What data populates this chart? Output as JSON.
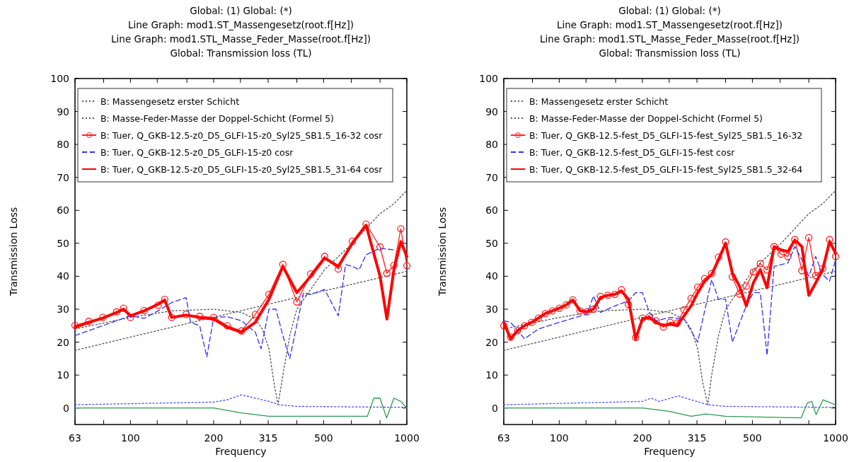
{
  "chart_data": [
    {
      "type": "line",
      "title": "Global:  (1)  Global:  (*)\nLine Graph: mod1.ST_Massengesetz(root.f[Hz])\nLine Graph: mod1.STL_Masse_Feder_Masse(root.f[Hz])\nGlobal: Transmission loss (TL)",
      "xlabel": "Frequency",
      "ylabel": "Transmission Loss",
      "log": "x",
      "legend": "top",
      "xlim": [
        63,
        1000
      ],
      "ylim": [
        -5,
        100
      ],
      "xticks": [
        63,
        {
          "value": 80,
          "label": null
        },
        100,
        {
          "value": 125,
          "label": null
        },
        {
          "value": 160,
          "label": null
        },
        200,
        {
          "value": 250,
          "label": null
        },
        315,
        {
          "value": 400,
          "label": null
        },
        500,
        {
          "value": 630,
          "label": null
        },
        {
          "value": 800,
          "label": null
        },
        1000
      ],
      "yticks": [
        0,
        10,
        20,
        30,
        40,
        50,
        60,
        70,
        80,
        90,
        100
      ],
      "series": [
        {
          "name": "B: Massengesetz erster Schicht",
          "color": "#555555",
          "line_style": "dotted",
          "marker": "none",
          "x": [
            63,
            250,
            1000
          ],
          "values": [
            17.5,
            29.5,
            41.5
          ]
        },
        {
          "name": "B: Masse-Feder-Masse der Doppel-Schicht (Formel 5)",
          "color": "#555555",
          "line_style": "dotted",
          "marker": "none",
          "x": [
            63,
            100,
            141,
            200,
            252,
            283,
            300,
            317,
            330,
            342,
            356,
            377,
            400,
            449,
            504,
            635,
            800,
            898,
            1000
          ],
          "values": [
            24,
            27.5,
            29.5,
            30,
            29,
            27,
            24,
            18,
            8,
            1,
            10,
            22,
            30,
            36,
            42,
            50,
            59,
            62,
            66
          ]
        },
        {
          "name": "B: Tuer, Q_GKB-12.5-z0_D5_GLFI-15-z0_Syl25_SB1.5_16-32 cosr",
          "color": "#ff2020",
          "line_style": "solid",
          "marker": "circle",
          "x": [
            63,
            70.7,
            79.4,
            89.1,
            94.4,
            100,
            112,
            126,
            133,
            141,
            159,
            178,
            200,
            224,
            252,
            283,
            317,
            356,
            400,
            449,
            504,
            565,
            635,
            712,
            800,
            847,
            898,
            951,
            1000
          ],
          "values": [
            25.1,
            26.3,
            27.5,
            29.2,
            30.3,
            27.5,
            29.6,
            31.2,
            33,
            27.5,
            28.4,
            27.8,
            27.5,
            25,
            23.4,
            28.4,
            34.5,
            43.6,
            32.2,
            40.7,
            46,
            42.2,
            50.6,
            55.8,
            48.9,
            40.9,
            43.3,
            54.4,
            43.2
          ]
        },
        {
          "name": "B: Tuer, Q_GKB-12.5-z0_D5_GLFI-15-z0 cosr",
          "color": "#3030ff",
          "line_style": "dashed",
          "marker": "none",
          "x": [
            63,
            70.7,
            79.4,
            89.1,
            100,
            112,
            126,
            141,
            159,
            165,
            178,
            189,
            200,
            224,
            252,
            283,
            297,
            317,
            336,
            356,
            377,
            423,
            449,
            504,
            565,
            600,
            635,
            672,
            712,
            800,
            898
          ],
          "values": [
            22,
            23.5,
            25,
            26.5,
            28,
            27.2,
            29.5,
            32,
            33.5,
            26,
            25,
            15.5,
            27.5,
            27.7,
            26.5,
            23,
            18,
            30,
            30,
            22,
            15,
            35,
            34.5,
            36,
            28,
            43.5,
            43,
            42,
            46.5,
            48.5,
            48
          ]
        },
        {
          "name": "B: Tuer, Q_GKB-12.5-z0_D5_GLFI-15-z0_Syl25_SB1.5_31-64 cosr",
          "color": "#ff0000",
          "line_style": "solid",
          "marker": "none",
          "x": [
            63,
            70.7,
            79.4,
            89.1,
            94.4,
            100,
            112,
            126,
            133,
            141,
            159,
            178,
            200,
            224,
            252,
            283,
            317,
            356,
            400,
            449,
            504,
            565,
            635,
            712,
            800,
            847,
            898,
            951,
            1000
          ],
          "values": [
            24.5,
            26,
            27.3,
            29,
            30,
            28,
            29.5,
            31.5,
            32.8,
            27.5,
            28.2,
            27.5,
            27,
            24.5,
            23,
            26,
            33,
            43,
            35,
            40,
            45.5,
            43,
            50,
            55.5,
            40,
            27,
            42,
            50.5,
            46
          ]
        },
        {
          "color": "#4a4aff",
          "line_style": "dotted",
          "marker": "none",
          "x": [
            63,
            200,
            224,
            252,
            283,
            317,
            345,
            400,
            1000
          ],
          "values": [
            1,
            1.8,
            2.5,
            4,
            3,
            2,
            1,
            0.5,
            0.2
          ]
        },
        {
          "color": "#2e9a50",
          "line_style": "solid",
          "marker": "none",
          "x": [
            63,
            200,
            252,
            317,
            400,
            720,
            760,
            800,
            845,
            898,
            951,
            1000
          ],
          "values": [
            0,
            0,
            -1.5,
            -2.5,
            -2.5,
            -2.5,
            3,
            3,
            -3,
            3,
            2,
            0
          ]
        }
      ]
    },
    {
      "type": "line",
      "title": "Global:  (1)  Global:  (*)\nLine Graph: mod1.ST_Massengesetz(root.f[Hz])\nLine Graph: mod1.STL_Masse_Feder_Masse(root.f[Hz])\nGlobal: Transmission loss (TL)",
      "xlabel": "Frequency",
      "ylabel": "Transmission Loss",
      "log": "x",
      "legend": "top",
      "xlim": [
        63,
        1000
      ],
      "ylim": [
        -5,
        100
      ],
      "xticks": [
        63,
        {
          "value": 80,
          "label": null
        },
        100,
        {
          "value": 125,
          "label": null
        },
        {
          "value": 160,
          "label": null
        },
        200,
        {
          "value": 250,
          "label": null
        },
        315,
        {
          "value": 400,
          "label": null
        },
        500,
        {
          "value": 630,
          "label": null
        },
        {
          "value": 800,
          "label": null
        },
        1000
      ],
      "yticks": [
        0,
        10,
        20,
        30,
        40,
        50,
        60,
        70,
        80,
        90,
        100
      ],
      "series": [
        {
          "name": "B: Massengesetz erster Schicht",
          "color": "#555555",
          "line_style": "dotted",
          "marker": "none",
          "x": [
            63,
            250,
            1000
          ],
          "values": [
            17.5,
            29.5,
            41.5
          ]
        },
        {
          "name": "B: Masse-Feder-Masse der Doppel-Schicht (Formel 5)",
          "color": "#555555",
          "line_style": "dotted",
          "marker": "none",
          "x": [
            63,
            100,
            141,
            200,
            252,
            283,
            300,
            317,
            330,
            345,
            356,
            377,
            400,
            449,
            504,
            635,
            800,
            898,
            1000
          ],
          "values": [
            24,
            27.5,
            29.5,
            30,
            29,
            27,
            24,
            18,
            8,
            1,
            10,
            22,
            30,
            36,
            42,
            50,
            59,
            62,
            66
          ]
        },
        {
          "name": "B: Tuer, Q_GKB-12.5-fest_D5_GLFI-15-fest_Syl25_SB1.5_16-32",
          "color": "#ff2020",
          "line_style": "solid",
          "marker": "circle",
          "x": [
            63,
            66.7,
            70.7,
            74.9,
            79.4,
            84.1,
            89.1,
            94.4,
            100,
            106,
            112,
            119,
            126,
            133,
            141,
            150,
            159,
            168,
            178,
            189,
            200,
            212,
            224,
            238,
            252,
            267,
            283,
            300,
            317,
            336,
            356,
            377,
            400,
            423,
            449,
            475,
            504,
            534,
            565,
            599,
            635,
            672,
            712,
            755,
            800,
            847,
            898,
            951,
            1000
          ],
          "values": [
            25,
            21.5,
            23.5,
            25,
            26,
            27.3,
            28.7,
            29.5,
            30.3,
            31.3,
            32.8,
            29.5,
            29.2,
            30,
            33.9,
            34.2,
            34.5,
            35.9,
            31.4,
            21.4,
            27.3,
            27.7,
            26.5,
            24.6,
            26,
            25.8,
            29.8,
            33.3,
            36.7,
            39.3,
            40.8,
            45.8,
            50.4,
            39.8,
            34.6,
            37,
            41.3,
            43.8,
            41.9,
            49,
            46.7,
            46,
            51.1,
            41.7,
            51.7,
            40.2,
            42.3,
            51.1,
            46
          ]
        },
        {
          "name": "B: Tuer, Q_GKB-12.5-fest_D5_GLFI-15-fest cosr",
          "color": "#3030ff",
          "line_style": "dashed",
          "marker": "none",
          "x": [
            63,
            66.7,
            74.9,
            84.1,
            100,
            126,
            133,
            141,
            159,
            178,
            189,
            200,
            212,
            224,
            238,
            252,
            283,
            317,
            356,
            377,
            400,
            423,
            475,
            504,
            534,
            565,
            599,
            635,
            672,
            712,
            755,
            800,
            847,
            898,
            951,
            1000
          ],
          "values": [
            26.5,
            26,
            21,
            24,
            26,
            28.5,
            34,
            29,
            31,
            32.5,
            35,
            35,
            29,
            26.5,
            27,
            27.5,
            27,
            20,
            39,
            33,
            33,
            20,
            31,
            35,
            35,
            16,
            43,
            43.5,
            44,
            49,
            45,
            40,
            46,
            40.5,
            38.5,
            45
          ]
        },
        {
          "name": "B: Tuer, Q_GKB-12.5-fest_D5_GLFI-15-fest_Syl25_SB1.5_32-64",
          "color": "#ff0000",
          "line_style": "solid",
          "marker": "none",
          "x": [
            63,
            66.7,
            70.7,
            74.9,
            79.4,
            84.1,
            89.1,
            94.4,
            100,
            106,
            112,
            119,
            126,
            133,
            141,
            150,
            159,
            168,
            178,
            189,
            200,
            212,
            224,
            238,
            252,
            267,
            283,
            300,
            317,
            336,
            356,
            377,
            400,
            423,
            449,
            475,
            504,
            534,
            565,
            599,
            635,
            672,
            712,
            755,
            800,
            847,
            898,
            951,
            1000
          ],
          "values": [
            26,
            21,
            23.5,
            25,
            26,
            27.3,
            28.7,
            29.5,
            30.3,
            31.3,
            32.8,
            29.5,
            29.2,
            30,
            33.5,
            34.2,
            34.5,
            35.5,
            33,
            21,
            27,
            27.5,
            26,
            25,
            25.5,
            25,
            28,
            31,
            35,
            38.5,
            40.5,
            45,
            50,
            41,
            37,
            31,
            38,
            42,
            36.5,
            49,
            48,
            47.5,
            51,
            49,
            34.2,
            38,
            42,
            50.5,
            47
          ]
        },
        {
          "color": "#4a4aff",
          "line_style": "dotted",
          "marker": "none",
          "x": [
            63,
            200,
            215,
            230,
            270,
            300,
            345,
            400,
            1000
          ],
          "values": [
            1,
            2,
            3,
            2,
            3.7,
            2.5,
            1,
            0.5,
            0.2
          ]
        },
        {
          "color": "#2e9a50",
          "line_style": "solid",
          "marker": "none",
          "x": [
            63,
            200,
            250,
            300,
            340,
            400,
            750,
            790,
            820,
            850,
            900,
            1000
          ],
          "values": [
            0,
            0,
            -1,
            -2.5,
            -1.8,
            -2.5,
            -3,
            1.5,
            2,
            -2,
            2.5,
            1
          ]
        }
      ]
    }
  ]
}
